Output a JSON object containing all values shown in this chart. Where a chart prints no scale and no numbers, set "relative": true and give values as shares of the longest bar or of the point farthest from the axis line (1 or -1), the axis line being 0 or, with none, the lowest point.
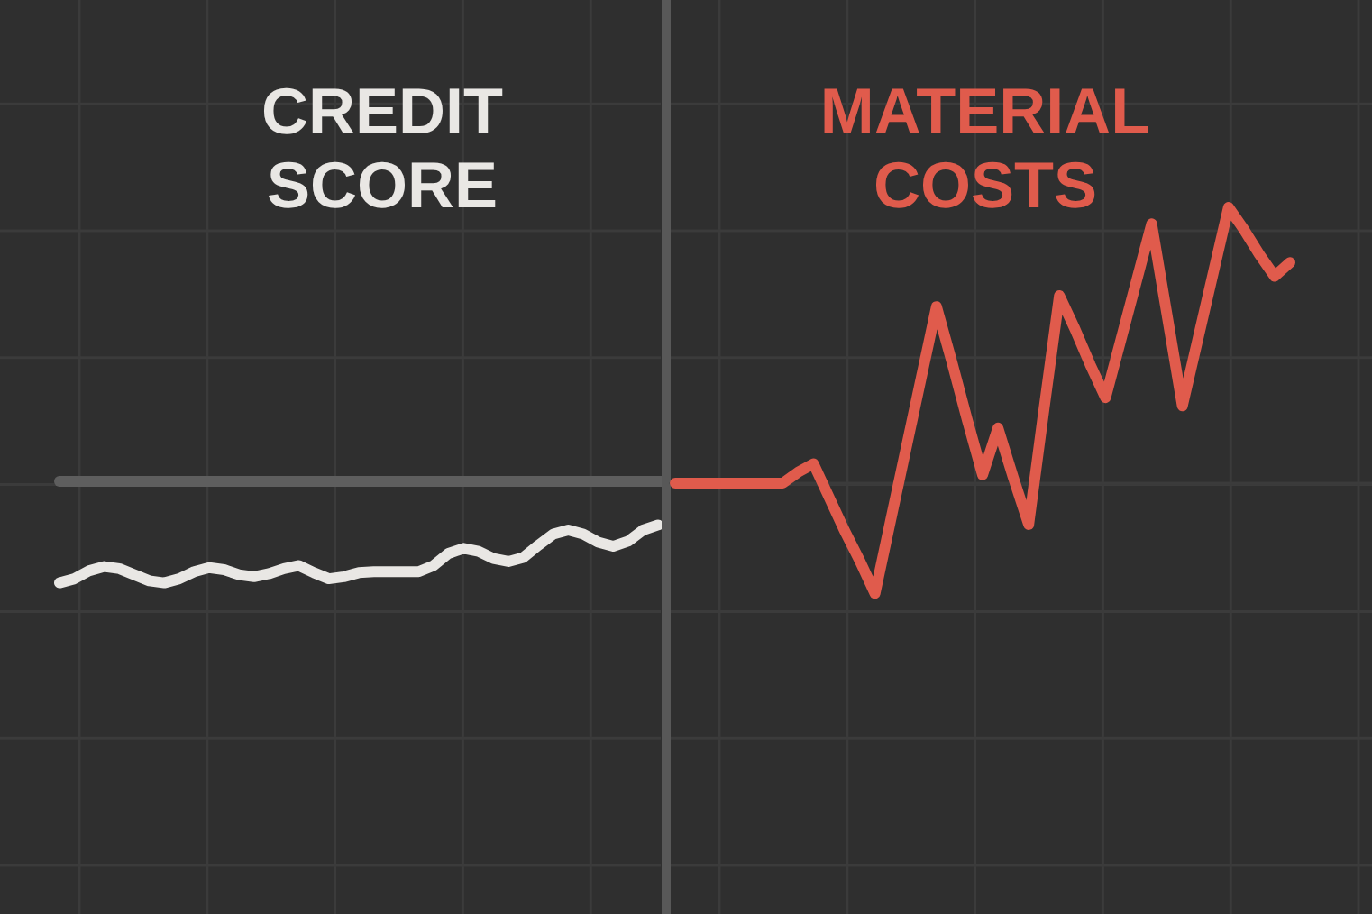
{
  "chart_data": [
    {
      "type": "line",
      "title": "CREDIT SCORE",
      "relative": true,
      "grid": true,
      "categories": [
        null,
        null,
        null,
        null,
        null,
        null,
        null,
        null,
        null,
        null,
        null,
        null,
        null,
        null,
        null,
        null,
        null,
        null,
        null,
        null,
        null,
        null,
        null,
        null,
        null,
        null,
        null,
        null,
        null,
        null,
        null,
        null,
        null,
        null,
        null,
        null,
        null,
        null,
        null,
        null,
        null
      ],
      "series": [
        {
          "color": "#e9e7e4",
          "values": [
            -1,
            -0.96,
            -0.88,
            -0.84,
            -0.86,
            -0.92,
            -0.98,
            -1,
            -0.96,
            -0.89,
            -0.85,
            -0.87,
            -0.92,
            -0.94,
            -0.91,
            -0.86,
            -0.83,
            -0.9,
            -0.96,
            -0.94,
            -0.9,
            -0.89,
            -0.89,
            -0.89,
            -0.89,
            -0.83,
            -0.71,
            -0.66,
            -0.69,
            -0.76,
            -0.79,
            -0.75,
            -0.63,
            -0.52,
            -0.48,
            -0.52,
            -0.6,
            -0.64,
            -0.59,
            -0.48,
            -0.43
          ]
        }
      ]
    },
    {
      "type": "line",
      "title": "MATERIAL COSTS",
      "relative": true,
      "grid": true,
      "categories": [
        null,
        null,
        null,
        null,
        null,
        null,
        null,
        null,
        null,
        null,
        null,
        null,
        null,
        null,
        null,
        null,
        null,
        null,
        null,
        null,
        null,
        null,
        null,
        null,
        null,
        null,
        null,
        null,
        null,
        null,
        null,
        null,
        null,
        null,
        null,
        null,
        null,
        null,
        null,
        null,
        null
      ],
      "series": [
        {
          "color": "#e05b4c",
          "values": [
            0,
            0,
            0,
            0,
            0,
            0,
            0,
            0,
            0.04,
            0.07,
            -0.05,
            -0.17,
            -0.28,
            -0.4,
            -0.14,
            0.12,
            0.38,
            0.64,
            0.44,
            0.23,
            0.03,
            0.2,
            0.02,
            -0.15,
            0.27,
            0.68,
            0.56,
            0.43,
            0.31,
            0.52,
            0.73,
            0.94,
            0.61,
            0.28,
            0.52,
            0.76,
            1,
            0.92,
            0.83,
            0.75,
            0.8
          ]
        }
      ]
    }
  ]
}
